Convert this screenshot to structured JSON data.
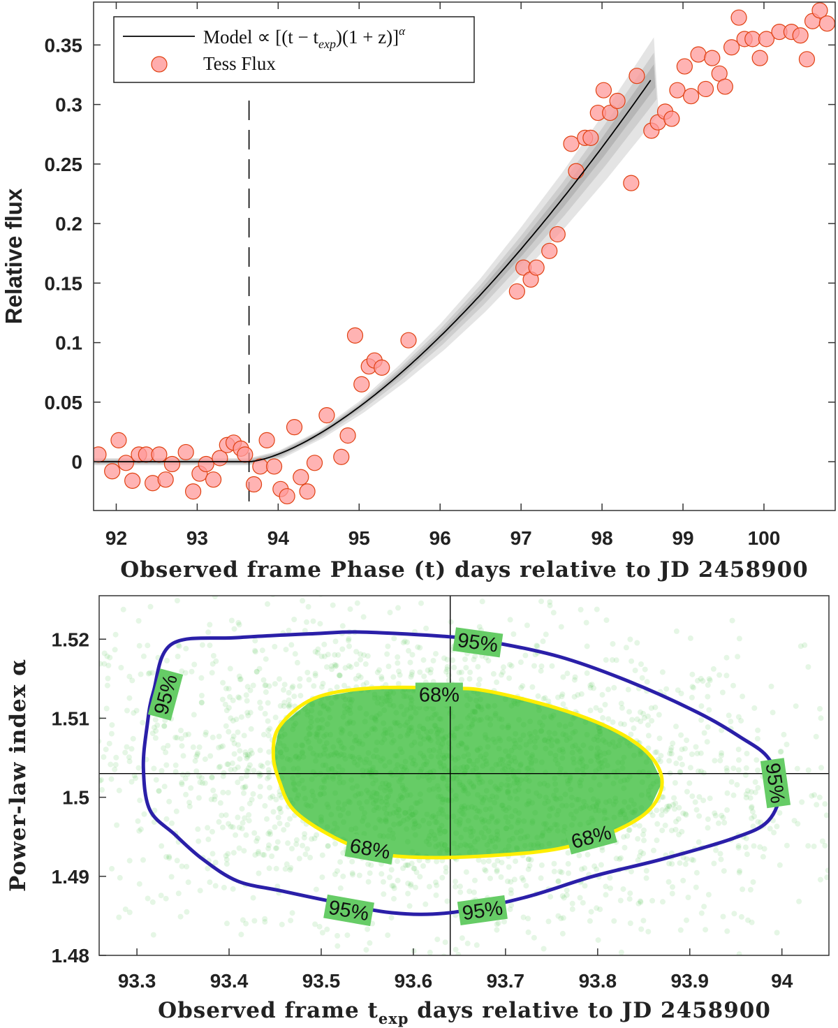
{
  "chart_data": [
    {
      "type": "scatter",
      "xlabel": "Observed frame Phase (t) days relative to JD 2458900",
      "ylabel": "Relative flux",
      "xlim": [
        91.72,
        100.88
      ],
      "ylim": [
        -0.041,
        0.386
      ],
      "xticks": [
        "92",
        "93",
        "94",
        "95",
        "96",
        "97",
        "98",
        "99",
        "100"
      ],
      "yticks": [
        "0",
        "0.05",
        "0.1",
        "0.15",
        "0.2",
        "0.25",
        "0.3",
        "0.35"
      ],
      "grid": false,
      "legend_position": "top-left",
      "legend": {
        "model_prefix": "Model ∝ [(t − t",
        "model_sub": "exp",
        "model_mid": ")(1 + z)]",
        "model_sup": "α",
        "flux": "Tess Flux"
      },
      "t_exp_marker": 93.64,
      "series": [
        {
          "name": "Tess Flux",
          "color": "#ff9999",
          "edge_color": "#e04010",
          "x": [
            91.78,
            91.95,
            92.03,
            92.12,
            92.2,
            92.28,
            92.37,
            92.45,
            92.53,
            92.61,
            92.69,
            92.86,
            92.95,
            93.03,
            93.11,
            93.2,
            93.28,
            93.37,
            93.45,
            93.54,
            93.59,
            93.7,
            93.78,
            93.86,
            93.95,
            94.03,
            94.11,
            94.2,
            94.28,
            94.36,
            94.45,
            94.6,
            94.78,
            94.86,
            94.95,
            95.03,
            95.12,
            95.19,
            95.28,
            95.61,
            96.95,
            97.03,
            97.12,
            97.19,
            97.35,
            97.45,
            97.62,
            97.68,
            97.79,
            97.86,
            97.95,
            98.02,
            98.1,
            98.19,
            98.36,
            98.43,
            98.61,
            98.69,
            98.78,
            98.86,
            98.93,
            99.02,
            99.1,
            99.19,
            99.28,
            99.36,
            99.45,
            99.52,
            99.6,
            99.69,
            99.76,
            99.86,
            99.95,
            100.03,
            100.19,
            100.34,
            100.45,
            100.53,
            100.6,
            100.69,
            100.78
          ],
          "y": [
            0.006,
            -0.008,
            0.018,
            -0.001,
            -0.016,
            0.006,
            0.006,
            -0.018,
            0.006,
            -0.015,
            -0.002,
            0.008,
            -0.025,
            -0.01,
            -0.002,
            -0.015,
            0.003,
            0.014,
            0.016,
            0.011,
            0.006,
            -0.019,
            -0.004,
            0.018,
            -0.004,
            -0.023,
            -0.029,
            0.029,
            -0.013,
            -0.025,
            -0.001,
            0.039,
            0.004,
            0.022,
            0.106,
            0.065,
            0.08,
            0.085,
            0.079,
            0.102,
            0.143,
            0.163,
            0.153,
            0.163,
            0.177,
            0.191,
            0.267,
            0.244,
            0.272,
            0.272,
            0.293,
            0.312,
            0.293,
            0.303,
            0.234,
            0.324,
            0.278,
            0.285,
            0.294,
            0.288,
            0.312,
            0.332,
            0.307,
            0.342,
            0.313,
            0.339,
            0.326,
            0.315,
            0.348,
            0.373,
            0.355,
            0.355,
            0.339,
            0.355,
            0.361,
            0.361,
            0.358,
            0.338,
            0.37,
            0.379,
            0.368
          ]
        },
        {
          "name": "Model ∝ [(t − t_exp)(1 + z)]^α",
          "type": "line",
          "color": "#000000",
          "band_color": "#bbbbbb",
          "x": [
            91.72,
            93.64,
            94.0,
            94.5,
            95.0,
            95.5,
            96.0,
            96.5,
            97.0,
            97.5,
            98.0,
            98.64
          ],
          "y": [
            0,
            0,
            0.006,
            0.023,
            0.046,
            0.074,
            0.105,
            0.14,
            0.179,
            0.22,
            0.264,
            0.324
          ]
        }
      ]
    },
    {
      "type": "scatter",
      "xlabel_parts": {
        "pre": "Observed frame t",
        "sub": "exp",
        "post": " days relative to JD 2458900"
      },
      "ylabel": "Power-law index α",
      "xlim": [
        93.259,
        94.051
      ],
      "ylim": [
        1.48,
        1.5255
      ],
      "xticks": [
        "93.3",
        "93.4",
        "93.5",
        "93.6",
        "93.7",
        "93.8",
        "93.9",
        "94"
      ],
      "yticks": [
        "1.48",
        "1.49",
        "1.5",
        "1.51",
        "1.52"
      ],
      "grid": false,
      "samples_color": "#33bb33",
      "best_fit": {
        "t_exp": 93.64,
        "alpha": 1.503
      },
      "contours": [
        {
          "level": "95%",
          "color": "#2a1fa8",
          "x": [
            93.338,
            93.409,
            93.492,
            93.545,
            93.64,
            93.682,
            93.758,
            93.833,
            93.909,
            93.955,
            93.985,
            93.998,
            93.985,
            93.947,
            93.871,
            93.795,
            93.72,
            93.64,
            93.576,
            93.508,
            93.455,
            93.409,
            93.371,
            93.341,
            93.314,
            93.307,
            93.311,
            93.318
          ],
          "y": [
            1.5194,
            1.5202,
            1.5207,
            1.5209,
            1.5203,
            1.5197,
            1.5178,
            1.5147,
            1.5107,
            1.5076,
            1.505,
            1.501,
            1.497,
            1.4948,
            1.4922,
            1.49,
            1.4873,
            1.4854,
            1.4854,
            1.4869,
            1.4882,
            1.4894,
            1.4922,
            1.4953,
            1.4984,
            1.5037,
            1.509,
            1.5134
          ]
        },
        {
          "level": "68%",
          "color": "#ffee00",
          "x": [
            93.455,
            93.492,
            93.553,
            93.64,
            93.682,
            93.758,
            93.818,
            93.856,
            93.87,
            93.856,
            93.818,
            93.758,
            93.682,
            93.606,
            93.553,
            93.508,
            93.47,
            93.455,
            93.448
          ],
          "y": [
            1.509,
            1.5125,
            1.5138,
            1.5138,
            1.5134,
            1.5112,
            1.5085,
            1.5054,
            1.5019,
            1.4984,
            1.4957,
            1.4935,
            1.4926,
            1.4924,
            1.4931,
            1.4953,
            1.4984,
            1.5019,
            1.5054
          ]
        }
      ],
      "contour_labels": [
        {
          "text": "95%",
          "x": 93.67,
          "y": 1.5196,
          "angle": 8
        },
        {
          "text": "95%",
          "x": 93.331,
          "y": 1.513,
          "angle": -75
        },
        {
          "text": "95%",
          "x": 93.993,
          "y": 1.5018,
          "angle": 82
        },
        {
          "text": "95%",
          "x": 93.53,
          "y": 1.4857,
          "angle": 10
        },
        {
          "text": "95%",
          "x": 93.675,
          "y": 1.4857,
          "angle": -8
        },
        {
          "text": "68%",
          "x": 93.628,
          "y": 1.513,
          "angle": 0
        },
        {
          "text": "68%",
          "x": 93.553,
          "y": 1.4935,
          "angle": 10
        },
        {
          "text": "68%",
          "x": 93.793,
          "y": 1.495,
          "angle": -15
        }
      ]
    }
  ]
}
